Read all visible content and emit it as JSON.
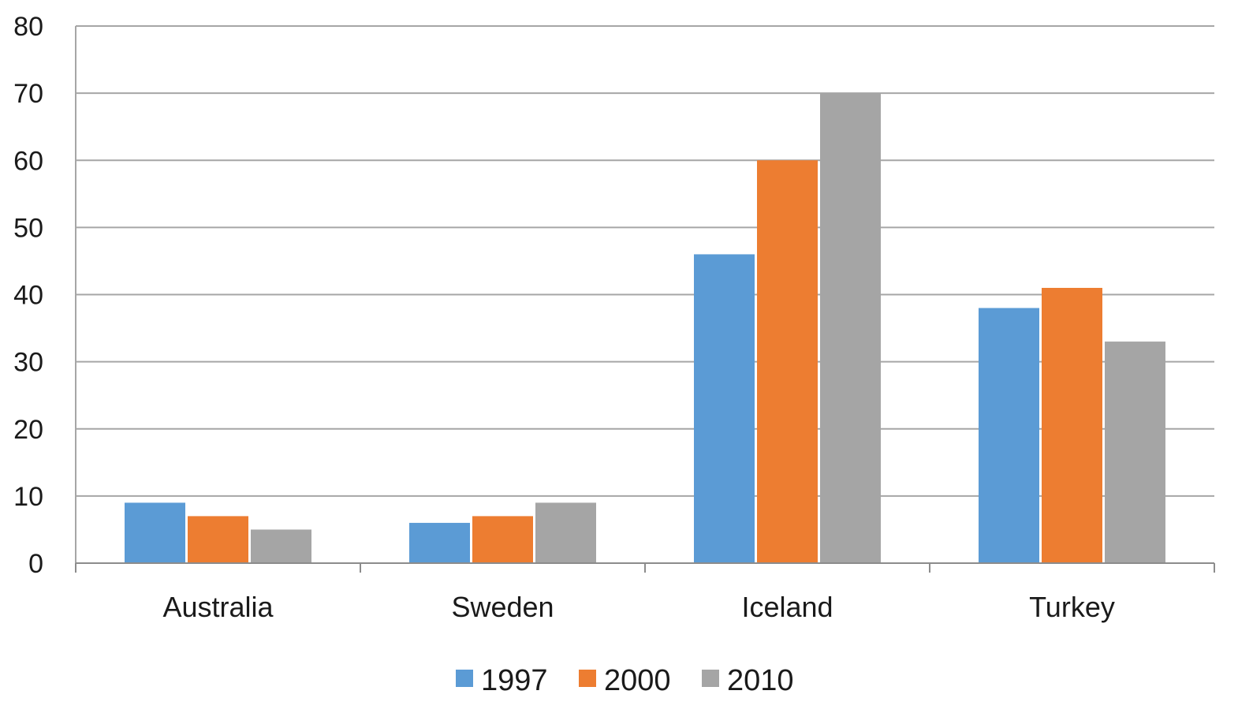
{
  "chart_data": {
    "type": "bar",
    "title": "",
    "xlabel": "",
    "ylabel": "",
    "categories": [
      "Australia",
      "Sweden",
      "Iceland",
      "Turkey"
    ],
    "series": [
      {
        "name": "1997",
        "values": [
          9,
          6,
          46,
          38
        ],
        "color": "#5b9bd5"
      },
      {
        "name": "2000",
        "values": [
          7,
          7,
          60,
          41
        ],
        "color": "#ed7d31"
      },
      {
        "name": "2010",
        "values": [
          5,
          9,
          70,
          33
        ],
        "color": "#a5a5a5"
      }
    ],
    "ylim": [
      0,
      80
    ],
    "yticks": [
      0,
      10,
      20,
      30,
      40,
      50,
      60,
      70,
      80
    ],
    "grid": true,
    "legend_position": "bottom"
  }
}
